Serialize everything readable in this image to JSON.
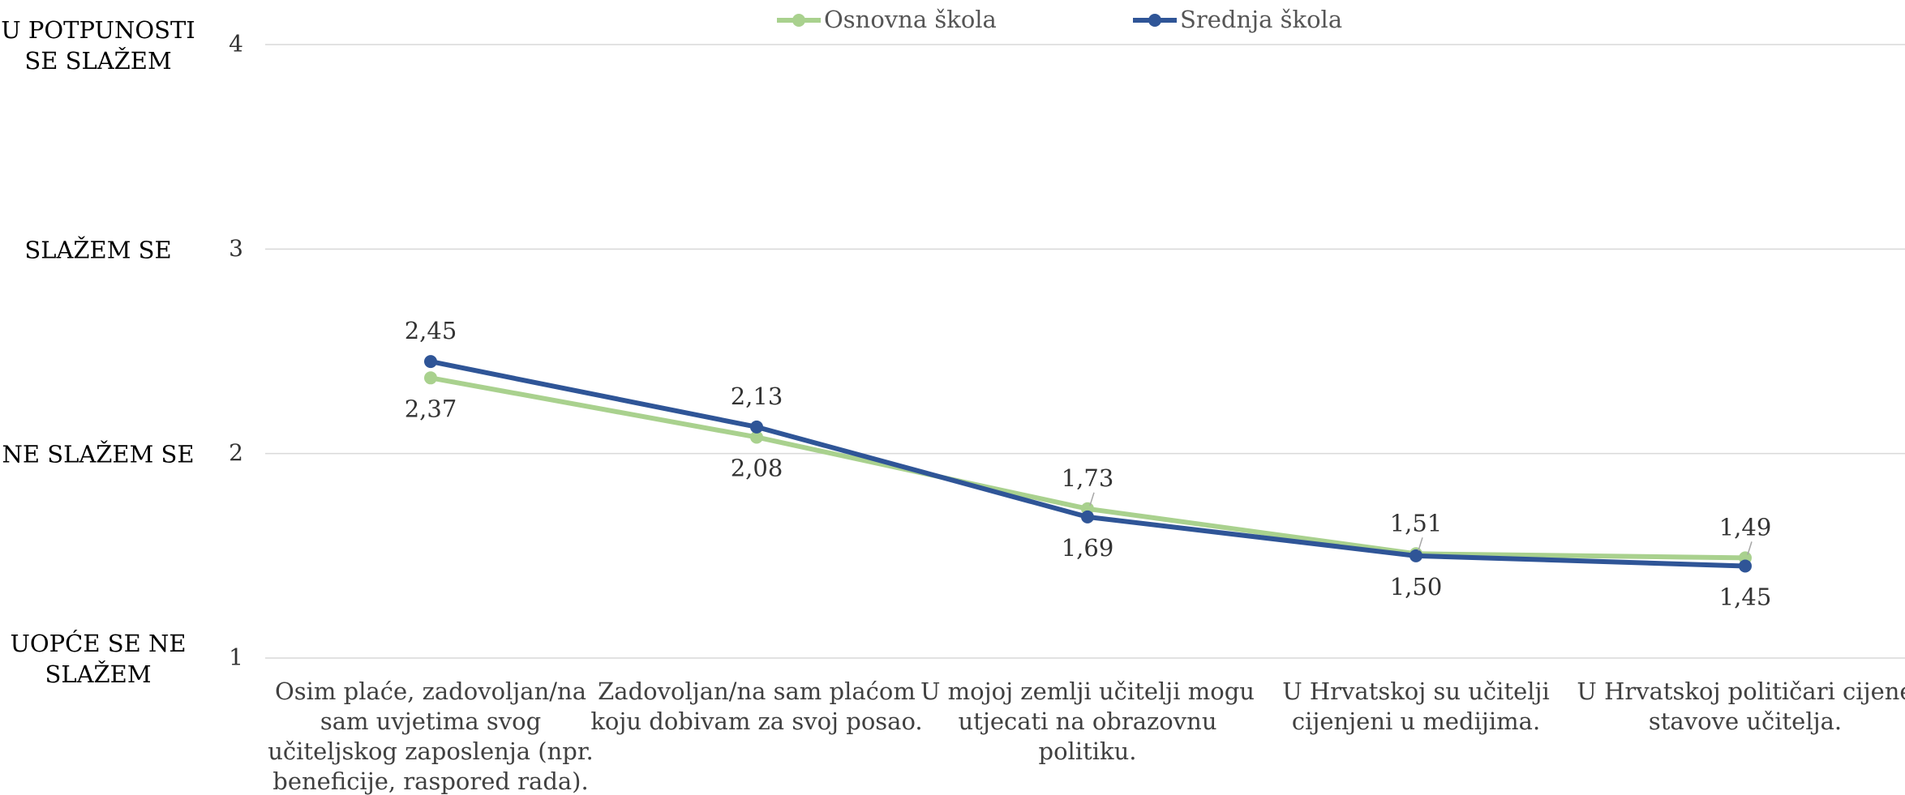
{
  "chart_data": {
    "type": "line",
    "categories": [
      "Osim plaće, zadovoljan/na sam uvjetima svog učiteljskog zaposlenja (npr. beneficije, raspored rada).",
      "Zadovoljan/na sam plaćom koju dobivam za svoj posao.",
      "U mojoj zemlji učitelji mogu utjecati na obrazovnu politiku.",
      "U Hrvatskoj su učitelji cijenjeni u medijima.",
      "U Hrvatskoj političari cijene stavove učitelja."
    ],
    "category_lines": [
      [
        "Osim plaće, zadovoljan/na",
        "sam uvjetima svog",
        "učiteljskog zaposlenja (npr.",
        "beneficije, raspored rada)."
      ],
      [
        "Zadovoljan/na sam plaćom",
        "koju dobivam za svoj posao."
      ],
      [
        "U mojoj zemlji učitelji mogu",
        "utjecati na obrazovnu",
        "politiku."
      ],
      [
        "U Hrvatskoj su učitelji",
        "cijenjeni u medijima."
      ],
      [
        "U Hrvatskoj političari cijene",
        "stavove učitelja."
      ]
    ],
    "series": [
      {
        "name": "Osnovna škola",
        "color": "#a9d18e",
        "values": [
          2.37,
          2.08,
          1.73,
          1.51,
          1.49
        ],
        "labels": [
          "2,37",
          "2,08",
          "1,73",
          "1,51",
          "1,49"
        ]
      },
      {
        "name": "Srednja škola",
        "color": "#2f5597",
        "values": [
          2.45,
          2.13,
          1.69,
          1.5,
          1.45
        ],
        "labels": [
          "2,45",
          "2,13",
          "1,69",
          "1,50",
          "1,45"
        ]
      }
    ],
    "ylim": [
      1,
      4
    ],
    "yticks": [
      1,
      2,
      3,
      4
    ],
    "ytick_labels": [
      "1",
      "2",
      "3",
      "4"
    ],
    "scale_labels": [
      {
        "value": 4,
        "lines": [
          "U POTPUNOSTI",
          "SE SLAŽEM"
        ]
      },
      {
        "value": 3,
        "lines": [
          "SLAŽEM SE"
        ]
      },
      {
        "value": 2,
        "lines": [
          "NE SLAŽEM SE"
        ]
      },
      {
        "value": 1,
        "lines": [
          "UOPĆE SE NE",
          "SLAŽEM"
        ]
      }
    ],
    "grid": true,
    "gridline_color": "#d9d9d9",
    "legend_position": "top-center",
    "title": "",
    "xlabel": "",
    "ylabel": ""
  }
}
